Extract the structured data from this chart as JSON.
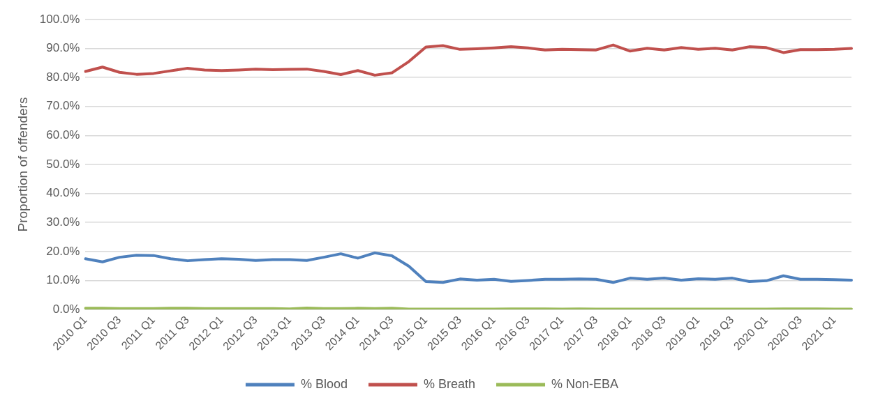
{
  "chart_data": {
    "type": "line",
    "ylabel": "Proportion of offenders",
    "categories": [
      "2010 Q1",
      null,
      "2010 Q3",
      null,
      "2011 Q1",
      null,
      "2011 Q3",
      null,
      "2012 Q1",
      null,
      "2012 Q3",
      null,
      "2013 Q1",
      null,
      "2013 Q3",
      null,
      "2014 Q1",
      null,
      "2014 Q3",
      null,
      "2015 Q1",
      null,
      "2015 Q3",
      null,
      "2016 Q1",
      null,
      "2016 Q3",
      null,
      "2017 Q1",
      null,
      "2017 Q3",
      null,
      "2018 Q1",
      null,
      "2018 Q3",
      null,
      "2019 Q1",
      null,
      "2019 Q3",
      null,
      "2020 Q1",
      null,
      "2020 Q3",
      null,
      "2021 Q1",
      null
    ],
    "series": [
      {
        "name": "% Blood",
        "color": "#4f81bd",
        "values": [
          17.5,
          16.4,
          18.0,
          18.7,
          18.6,
          17.5,
          16.8,
          17.2,
          17.5,
          17.3,
          16.9,
          17.2,
          17.2,
          16.9,
          18.0,
          19.2,
          17.7,
          19.5,
          18.5,
          14.9,
          9.6,
          9.3,
          10.5,
          10.1,
          10.4,
          9.7,
          10.0,
          10.4,
          10.4,
          10.5,
          10.4,
          9.3,
          10.8,
          10.4,
          10.8,
          10.1,
          10.6,
          10.4,
          10.8,
          9.6,
          9.9,
          11.6,
          10.4,
          10.4,
          10.3,
          10.1
        ]
      },
      {
        "name": "% Breath",
        "color": "#c0504d",
        "values": [
          82.1,
          83.6,
          81.8,
          81.1,
          81.4,
          82.3,
          83.2,
          82.6,
          82.4,
          82.6,
          82.9,
          82.7,
          82.8,
          82.9,
          82.1,
          81.0,
          82.4,
          80.8,
          81.6,
          85.5,
          90.5,
          91.0,
          89.7,
          89.9,
          90.2,
          90.6,
          90.2,
          89.5,
          89.7,
          89.6,
          89.5,
          91.2,
          89.1,
          90.1,
          89.5,
          90.3,
          89.7,
          90.1,
          89.5,
          90.6,
          90.3,
          88.6,
          89.6,
          89.6,
          89.7,
          90.0
        ]
      },
      {
        "name": "% Non-EBA",
        "color": "#9bbb59",
        "values": [
          0.4,
          0.4,
          0.3,
          0.3,
          0.3,
          0.4,
          0.4,
          0.3,
          0.3,
          0.3,
          0.3,
          0.3,
          0.2,
          0.5,
          0.3,
          0.3,
          0.4,
          0.3,
          0.4,
          0.1,
          0.1,
          0.1,
          0.1,
          0.1,
          0.1,
          0.2,
          0.2,
          0.2,
          0.1,
          0.2,
          0.1,
          0.1,
          0.1,
          0.1,
          0.1,
          0.1,
          0.1,
          0.1,
          0.1,
          0.1,
          0.1,
          0.2,
          0.2,
          0.2,
          0.1,
          0.1
        ]
      }
    ],
    "ylim": [
      0,
      100
    ],
    "yticks": [
      {
        "value": 0,
        "label": "0.0%"
      },
      {
        "value": 10,
        "label": "10.0%"
      },
      {
        "value": 20,
        "label": "20.0%"
      },
      {
        "value": 30,
        "label": "30.0%"
      },
      {
        "value": 40,
        "label": "40.0%"
      },
      {
        "value": 50,
        "label": "50.0%"
      },
      {
        "value": 60,
        "label": "60.0%"
      },
      {
        "value": 70,
        "label": "70.0%"
      },
      {
        "value": 80,
        "label": "80.0%"
      },
      {
        "value": 90,
        "label": "90.0%"
      },
      {
        "value": 100,
        "label": "100.0%"
      }
    ],
    "grid": "y",
    "legend": "bottom",
    "marker": "none",
    "line_style": "solid"
  }
}
